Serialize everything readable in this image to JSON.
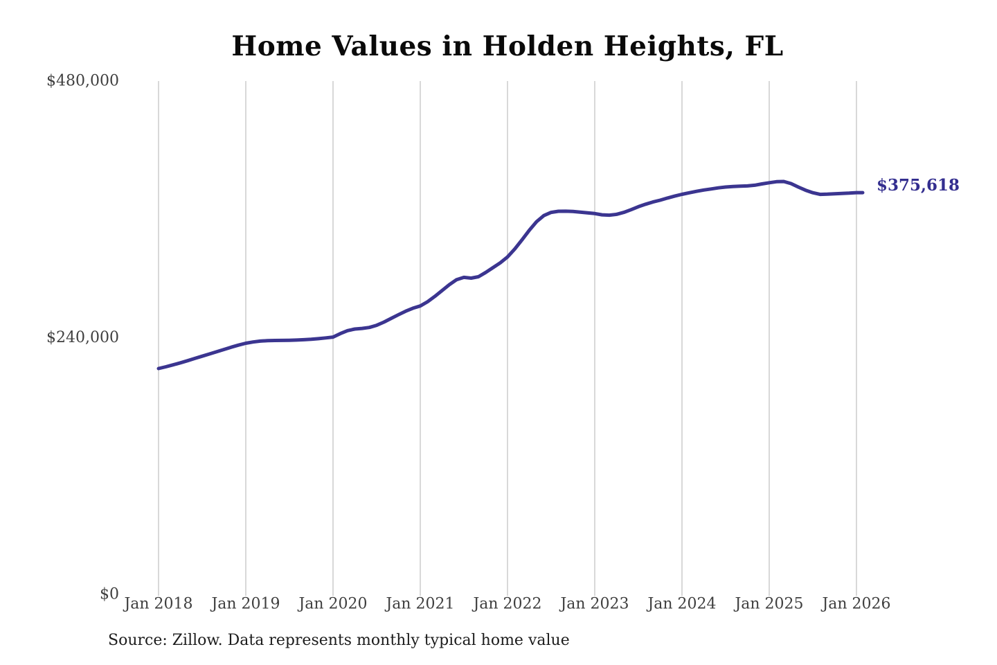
{
  "source_note": "Source: Zillow. Data represents monthly typical home value",
  "chart_data": {
    "type": "line",
    "title": "Home Values in Holden Heights, FL",
    "xlabel": "",
    "ylabel": "",
    "ylim": [
      0,
      480000
    ],
    "grid": "vertical-only",
    "legend_position": "none",
    "x_tick_labels": [
      "Jan 2018",
      "Jan 2019",
      "Jan 2020",
      "Jan 2021",
      "Jan 2022",
      "Jan 2023",
      "Jan 2024",
      "Jan 2025",
      "Jan 2026"
    ],
    "y_ticks": [
      {
        "value": 0,
        "label": "$0"
      },
      {
        "value": 240000,
        "label": "$240,000"
      },
      {
        "value": 480000,
        "label": "$480,000"
      }
    ],
    "end_label": "$375,618",
    "end_value": 375618,
    "colors": {
      "line": "#3b3590",
      "end_label": "#332e8f",
      "grid": "#cbcbcb",
      "axis_text": "#3f3f3f",
      "title": "#0a0a0a",
      "source_text": "#1c1c1c",
      "background": "#ffffff"
    },
    "series": [
      {
        "name": "Monthly typical home value",
        "start_month": "2018-01",
        "end_month": "2026-01",
        "frequency": "monthly",
        "values": [
          211200,
          212800,
          214600,
          216500,
          218500,
          220600,
          222700,
          224800,
          226900,
          229000,
          231100,
          233100,
          234800,
          236000,
          236800,
          237200,
          237400,
          237500,
          237600,
          237800,
          238100,
          238500,
          239100,
          239800,
          240600,
          243800,
          246600,
          248100,
          248700,
          249600,
          251600,
          254600,
          258100,
          261500,
          264800,
          267600,
          269700,
          273600,
          278600,
          284100,
          289600,
          294300,
          296400,
          295700,
          297000,
          301000,
          305500,
          310000,
          315500,
          323000,
          331500,
          340500,
          348500,
          354200,
          357200,
          358200,
          358300,
          358000,
          357400,
          356700,
          356100,
          354900,
          354600,
          355400,
          357200,
          359700,
          362500,
          364800,
          366900,
          368600,
          370600,
          372400,
          374100,
          375500,
          376900,
          378100,
          379100,
          380100,
          380900,
          381400,
          381700,
          381900,
          382600,
          383800,
          384900,
          385900,
          386100,
          384100,
          380900,
          377900,
          375600,
          374000,
          374200,
          374600,
          374900,
          375200,
          375618
        ]
      }
    ]
  }
}
